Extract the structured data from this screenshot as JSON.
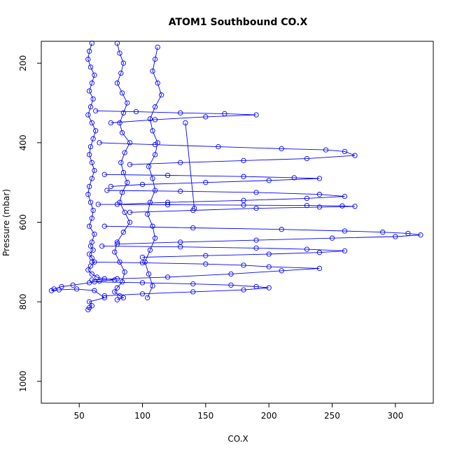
{
  "chart_data": {
    "type": "scatter",
    "title": "ATOM1 Southbound CO.X",
    "xlabel": "CO.X",
    "ylabel": "Pressure (mbar)",
    "xlim": [
      20,
      330
    ],
    "ylim": [
      1055,
      145
    ],
    "y_reversed": true,
    "grid": false,
    "legend": "none",
    "marker": "open-circle",
    "connected": true,
    "x_ticks": [
      50,
      100,
      150,
      200,
      250,
      300
    ],
    "y_ticks": [
      200,
      400,
      600,
      800,
      1000
    ],
    "series_color": "#0000ff",
    "series": [
      {
        "x": [
          60,
          58,
          57,
          59,
          62,
          60,
          58,
          61,
          59,
          57,
          60,
          63,
          61,
          59,
          58,
          60,
          62,
          60,
          58,
          57,
          59,
          61,
          60,
          58,
          62,
          60,
          59,
          61,
          58,
          60,
          62,
          59,
          57,
          60,
          64,
          70,
          78,
          66,
          58,
          45,
          36,
          30,
          28,
          34,
          48,
          62,
          70,
          58,
          60,
          58,
          57
        ],
        "y": [
          150,
          170,
          190,
          210,
          230,
          250,
          270,
          290,
          310,
          330,
          350,
          370,
          390,
          410,
          430,
          450,
          470,
          490,
          510,
          530,
          550,
          570,
          590,
          610,
          630,
          650,
          660,
          670,
          680,
          690,
          700,
          710,
          720,
          730,
          738,
          742,
          745,
          748,
          752,
          758,
          762,
          768,
          772,
          770,
          768,
          772,
          790,
          800,
          810,
          815,
          820
        ]
      },
      {
        "x": [
          80,
          82,
          85,
          83,
          80,
          84,
          88,
          85,
          82,
          84,
          90,
          86,
          83,
          85,
          88,
          84,
          82,
          86,
          90,
          85,
          80,
          78,
          82,
          86,
          84,
          80,
          78,
          82,
          85,
          80
        ],
        "y": [
          150,
          175,
          200,
          225,
          250,
          275,
          300,
          325,
          350,
          375,
          400,
          425,
          450,
          475,
          500,
          525,
          550,
          575,
          600,
          625,
          650,
          675,
          700,
          725,
          750,
          765,
          775,
          785,
          790,
          795
        ]
      },
      {
        "x": [
          112,
          110,
          108,
          112,
          115,
          110,
          106,
          108,
          112,
          110,
          105,
          108,
          110,
          106,
          104,
          108,
          110,
          106,
          102,
          105,
          108,
          104
        ],
        "y": [
          160,
          190,
          220,
          250,
          280,
          310,
          340,
          370,
          400,
          430,
          460,
          490,
          520,
          550,
          580,
          610,
          640,
          670,
          700,
          730,
          760,
          790
        ]
      },
      {
        "x": [
          63,
          95,
          130,
          165,
          190,
          150,
          110,
          75
        ],
        "y": [
          320,
          322,
          325,
          327,
          330,
          335,
          342,
          350
        ]
      },
      {
        "x": [
          66,
          110,
          160,
          210,
          245,
          260,
          268,
          230,
          180,
          130,
          90
        ],
        "y": [
          400,
          405,
          410,
          415,
          418,
          422,
          432,
          440,
          445,
          450,
          455
        ]
      },
      {
        "x": [
          70,
          120,
          180,
          220,
          240,
          200,
          150,
          100,
          75
        ],
        "y": [
          480,
          482,
          485,
          488,
          490,
          495,
          500,
          505,
          510
        ]
      },
      {
        "x": [
          72,
          130,
          190,
          240,
          260,
          230,
          180,
          120,
          80
        ],
        "y": [
          520,
          522,
          525,
          530,
          535,
          540,
          545,
          550,
          555
        ]
      },
      {
        "x": [
          65,
          120,
          180,
          230,
          258,
          268,
          240,
          190,
          140,
          90
        ],
        "y": [
          555,
          556,
          557,
          558,
          559,
          560,
          562,
          565,
          570,
          575
        ]
      },
      {
        "x": [
          70,
          140,
          210,
          260,
          290,
          310,
          320,
          300,
          250,
          190,
          130,
          80
        ],
        "y": [
          610,
          614,
          618,
          622,
          625,
          628,
          632,
          636,
          640,
          645,
          650,
          655
        ]
      },
      {
        "x": [
          68,
          130,
          190,
          230,
          260,
          240,
          200,
          150,
          100
        ],
        "y": [
          660,
          662,
          665,
          668,
          672,
          676,
          680,
          684,
          688
        ]
      },
      {
        "x": [
          60,
          100,
          150,
          180,
          200,
          240,
          210,
          170,
          120,
          80,
          60
        ],
        "y": [
          700,
          702,
          705,
          708,
          712,
          716,
          722,
          730,
          738,
          742,
          745
        ]
      },
      {
        "x": [
          62,
          100,
          140,
          170,
          190,
          200,
          180,
          140,
          100,
          70
        ],
        "y": [
          750,
          752,
          755,
          758,
          762,
          765,
          770,
          775,
          780,
          785
        ]
      },
      {
        "x": [
          134,
          141
        ],
        "y": [
          350,
          565
        ]
      }
    ]
  }
}
